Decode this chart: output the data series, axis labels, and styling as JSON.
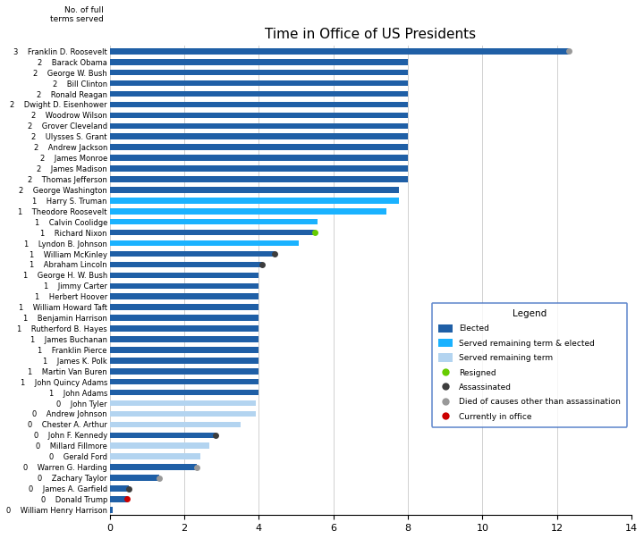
{
  "title": "Time in Office of US Presidents",
  "xlim": [
    0,
    14
  ],
  "xticks": [
    0,
    2,
    4,
    6,
    8,
    10,
    12,
    14
  ],
  "presidents": [
    {
      "name": "Franklin D. Roosevelt",
      "terms": 3,
      "bar_value": 12.33,
      "bar_color": "elected",
      "marker": "died_other",
      "marker_val": 12.33
    },
    {
      "name": "Barack Obama",
      "terms": 2,
      "bar_value": 8.0,
      "bar_color": "elected",
      "marker": null,
      "marker_val": null
    },
    {
      "name": "George W. Bush",
      "terms": 2,
      "bar_value": 8.0,
      "bar_color": "elected",
      "marker": null,
      "marker_val": null
    },
    {
      "name": "Bill Clinton",
      "terms": 2,
      "bar_value": 8.0,
      "bar_color": "elected",
      "marker": null,
      "marker_val": null
    },
    {
      "name": "Ronald Reagan",
      "terms": 2,
      "bar_value": 8.0,
      "bar_color": "elected",
      "marker": null,
      "marker_val": null
    },
    {
      "name": "Dwight D. Eisenhower",
      "terms": 2,
      "bar_value": 8.0,
      "bar_color": "elected",
      "marker": null,
      "marker_val": null
    },
    {
      "name": "Woodrow Wilson",
      "terms": 2,
      "bar_value": 8.0,
      "bar_color": "elected",
      "marker": null,
      "marker_val": null
    },
    {
      "name": "Grover Cleveland",
      "terms": 2,
      "bar_value": 8.0,
      "bar_color": "elected",
      "marker": null,
      "marker_val": null
    },
    {
      "name": "Ulysses S. Grant",
      "terms": 2,
      "bar_value": 8.0,
      "bar_color": "elected",
      "marker": null,
      "marker_val": null
    },
    {
      "name": "Andrew Jackson",
      "terms": 2,
      "bar_value": 8.0,
      "bar_color": "elected",
      "marker": null,
      "marker_val": null
    },
    {
      "name": "James Monroe",
      "terms": 2,
      "bar_value": 8.0,
      "bar_color": "elected",
      "marker": null,
      "marker_val": null
    },
    {
      "name": "James Madison",
      "terms": 2,
      "bar_value": 8.0,
      "bar_color": "elected",
      "marker": null,
      "marker_val": null
    },
    {
      "name": "Thomas Jefferson",
      "terms": 2,
      "bar_value": 8.0,
      "bar_color": "elected",
      "marker": null,
      "marker_val": null
    },
    {
      "name": "George Washington",
      "terms": 2,
      "bar_value": 7.75,
      "bar_color": "elected",
      "marker": null,
      "marker_val": null
    },
    {
      "name": "Harry S. Truman",
      "terms": 1,
      "bar_value": 7.75,
      "bar_color": "srv_rem_elected",
      "marker": null,
      "marker_val": null
    },
    {
      "name": "Theodore Roosevelt",
      "terms": 1,
      "bar_value": 7.42,
      "bar_color": "srv_rem_elected",
      "marker": null,
      "marker_val": null
    },
    {
      "name": "Calvin Coolidge",
      "terms": 1,
      "bar_value": 5.58,
      "bar_color": "srv_rem_elected",
      "marker": null,
      "marker_val": null
    },
    {
      "name": "Richard Nixon",
      "terms": 1,
      "bar_value": 5.5,
      "bar_color": "elected",
      "marker": "resigned",
      "marker_val": 5.5
    },
    {
      "name": "Lyndon B. Johnson",
      "terms": 1,
      "bar_value": 5.08,
      "bar_color": "srv_rem_elected",
      "marker": null,
      "marker_val": null
    },
    {
      "name": "William McKinley",
      "terms": 1,
      "bar_value": 4.42,
      "bar_color": "elected",
      "marker": "assassinated",
      "marker_val": 4.42
    },
    {
      "name": "Abraham Lincoln",
      "terms": 1,
      "bar_value": 4.08,
      "bar_color": "elected",
      "marker": "assassinated",
      "marker_val": 4.08
    },
    {
      "name": "George H. W. Bush",
      "terms": 1,
      "bar_value": 4.0,
      "bar_color": "elected",
      "marker": null,
      "marker_val": null
    },
    {
      "name": "Jimmy Carter",
      "terms": 1,
      "bar_value": 4.0,
      "bar_color": "elected",
      "marker": null,
      "marker_val": null
    },
    {
      "name": "Herbert Hoover",
      "terms": 1,
      "bar_value": 4.0,
      "bar_color": "elected",
      "marker": null,
      "marker_val": null
    },
    {
      "name": "William Howard Taft",
      "terms": 1,
      "bar_value": 4.0,
      "bar_color": "elected",
      "marker": null,
      "marker_val": null
    },
    {
      "name": "Benjamin Harrison",
      "terms": 1,
      "bar_value": 4.0,
      "bar_color": "elected",
      "marker": null,
      "marker_val": null
    },
    {
      "name": "Rutherford B. Hayes",
      "terms": 1,
      "bar_value": 4.0,
      "bar_color": "elected",
      "marker": null,
      "marker_val": null
    },
    {
      "name": "James Buchanan",
      "terms": 1,
      "bar_value": 4.0,
      "bar_color": "elected",
      "marker": null,
      "marker_val": null
    },
    {
      "name": "Franklin Pierce",
      "terms": 1,
      "bar_value": 4.0,
      "bar_color": "elected",
      "marker": null,
      "marker_val": null
    },
    {
      "name": "James K. Polk",
      "terms": 1,
      "bar_value": 4.0,
      "bar_color": "elected",
      "marker": null,
      "marker_val": null
    },
    {
      "name": "Martin Van Buren",
      "terms": 1,
      "bar_value": 4.0,
      "bar_color": "elected",
      "marker": null,
      "marker_val": null
    },
    {
      "name": "John Quincy Adams",
      "terms": 1,
      "bar_value": 4.0,
      "bar_color": "elected",
      "marker": null,
      "marker_val": null
    },
    {
      "name": "John Adams",
      "terms": 1,
      "bar_value": 4.0,
      "bar_color": "elected",
      "marker": null,
      "marker_val": null
    },
    {
      "name": "John Tyler",
      "terms": 0,
      "bar_value": 3.92,
      "bar_color": "srv_rem",
      "marker": null,
      "marker_val": null
    },
    {
      "name": "Andrew Johnson",
      "terms": 0,
      "bar_value": 3.92,
      "bar_color": "srv_rem",
      "marker": null,
      "marker_val": null
    },
    {
      "name": "Chester A. Arthur",
      "terms": 0,
      "bar_value": 3.5,
      "bar_color": "srv_rem",
      "marker": null,
      "marker_val": null
    },
    {
      "name": "John F. Kennedy",
      "terms": 0,
      "bar_value": 2.83,
      "bar_color": "elected",
      "marker": "assassinated",
      "marker_val": 2.83
    },
    {
      "name": "Millard Fillmore",
      "terms": 0,
      "bar_value": 2.67,
      "bar_color": "srv_rem",
      "marker": null,
      "marker_val": null
    },
    {
      "name": "Gerald Ford",
      "terms": 0,
      "bar_value": 2.42,
      "bar_color": "srv_rem",
      "marker": null,
      "marker_val": null
    },
    {
      "name": "Warren G. Harding",
      "terms": 0,
      "bar_value": 2.33,
      "bar_color": "elected",
      "marker": "died_other",
      "marker_val": 2.33
    },
    {
      "name": "Zachary Taylor",
      "terms": 0,
      "bar_value": 1.33,
      "bar_color": "elected",
      "marker": "died_other",
      "marker_val": 1.33
    },
    {
      "name": "James A. Garfield",
      "terms": 0,
      "bar_value": 0.5,
      "bar_color": "elected",
      "marker": "assassinated",
      "marker_val": 0.5
    },
    {
      "name": "Donald Trump",
      "terms": 0,
      "bar_value": 0.46,
      "bar_color": "elected",
      "marker": "current",
      "marker_val": 0.46
    },
    {
      "name": "William Henry Harrison",
      "terms": 0,
      "bar_value": 0.08,
      "bar_color": "elected",
      "marker": null,
      "marker_val": null
    }
  ],
  "colors": {
    "elected": "#1f5fa6",
    "srv_rem_elected": "#1ab2ff",
    "srv_rem": "#b3d4f0",
    "resigned": "#66cc00",
    "assassinated": "#3d3d3d",
    "died_other": "#999999",
    "current": "#cc0000"
  },
  "legend_items": [
    {
      "label": "Elected",
      "type": "bar",
      "color": "elected"
    },
    {
      "label": "Served remaining term & elected",
      "type": "bar",
      "color": "srv_rem_elected"
    },
    {
      "label": "Served remaining term",
      "type": "bar",
      "color": "srv_rem"
    },
    {
      "label": "Resigned",
      "type": "dot",
      "color": "resigned"
    },
    {
      "label": "Assassinated",
      "type": "dot",
      "color": "assassinated"
    },
    {
      "label": "Died of causes other than assassination",
      "type": "dot",
      "color": "died_other"
    },
    {
      "label": "Currently in office",
      "type": "dot",
      "color": "current"
    }
  ],
  "bar_height": 0.55,
  "label_fontsize": 6.0,
  "title_fontsize": 11
}
